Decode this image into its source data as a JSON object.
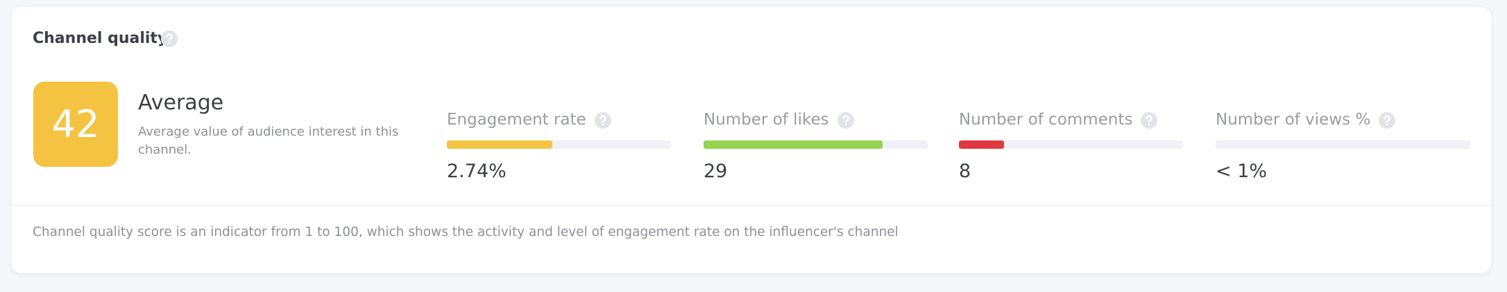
{
  "header": {
    "title": "Channel quality"
  },
  "score": {
    "value": "42",
    "label": "Average",
    "description": "Average value of audience interest in this channel.",
    "color": "#f4c342"
  },
  "metrics": [
    {
      "label": "Engagement rate",
      "value": "2.74%",
      "bar": 47,
      "color": "#f4c342"
    },
    {
      "label": "Number of likes",
      "value": "29",
      "bar": 80,
      "color": "#95d44f"
    },
    {
      "label": "Number of comments",
      "value": "8",
      "bar": 20,
      "color": "#e0383e"
    },
    {
      "label": "Number of views %",
      "value": "< 1%",
      "bar": 0,
      "color": "#95d44f"
    }
  ],
  "footer": {
    "text": "Channel quality score is an indicator from 1 to 100, which shows the activity and level of engagement rate on the influencer's channel"
  }
}
